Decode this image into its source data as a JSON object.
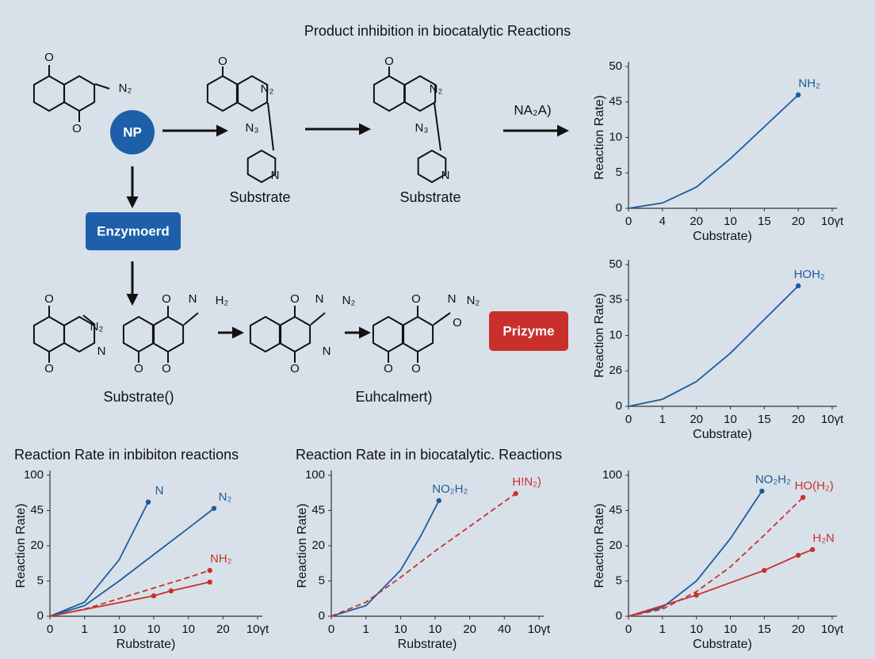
{
  "title": "Product inhibition in biocatalytic Reactions",
  "scheme": {
    "nodes": [
      "NP",
      "Enzymoerd",
      "Prizyme"
    ],
    "labels": [
      "Substrate",
      "Substrate",
      "Substrate()",
      "Euhcalmert)",
      "NA₂A)"
    ],
    "molecules": [
      {
        "atoms": [
          "O",
          "N₂",
          "O"
        ]
      },
      {
        "atoms": [
          "O",
          "N₂",
          "N₃",
          "N"
        ]
      },
      {
        "atoms": [
          "O",
          "N₂",
          "N₃",
          "N"
        ]
      },
      {
        "atoms": [
          "O",
          "N₂",
          "N",
          "O"
        ]
      },
      {
        "atoms": [
          "O",
          "N",
          "H₂",
          "O",
          "O"
        ]
      },
      {
        "atoms": [
          "O",
          "N",
          "N₂",
          "N",
          "O"
        ]
      },
      {
        "atoms": [
          "O",
          "N",
          "N₂",
          "O",
          "O",
          "O"
        ]
      }
    ]
  },
  "chart_data": [
    {
      "type": "line",
      "xlabel": "Cubstrate)",
      "ylabel": "Reaction Rate)",
      "xlim": [
        0,
        6
      ],
      "xticks": [
        0,
        {
          "value": 1,
          "label": "4"
        },
        {
          "value": 2,
          "label": "20"
        },
        {
          "value": 3,
          "label": "10"
        },
        {
          "value": 4,
          "label": "15"
        },
        {
          "value": 5,
          "label": "20"
        },
        {
          "value": 6,
          "label": "10γt"
        }
      ],
      "ylim": [
        0,
        4
      ],
      "yticks": [
        0,
        {
          "value": 1,
          "label": "5"
        },
        {
          "value": 2,
          "label": "10"
        },
        {
          "value": 3,
          "label": "45"
        },
        {
          "value": 4,
          "label": "50"
        }
      ],
      "series": [
        {
          "name": "NH₂",
          "color": "#1f5b9c",
          "dashed": false,
          "markers": "end",
          "x": [
            0,
            1,
            2,
            3,
            4,
            5
          ],
          "values": [
            0,
            0.15,
            0.6,
            1.4,
            2.3,
            3.2
          ]
        }
      ]
    },
    {
      "type": "line",
      "xlabel": "Cubstrate)",
      "ylabel": "Reaction Rate)",
      "xlim": [
        0,
        6
      ],
      "xticks": [
        0,
        {
          "value": 1,
          "label": "1"
        },
        {
          "value": 2,
          "label": "20"
        },
        {
          "value": 3,
          "label": "10"
        },
        {
          "value": 4,
          "label": "15"
        },
        {
          "value": 5,
          "label": "20"
        },
        {
          "value": 6,
          "label": "10γt"
        }
      ],
      "ylim": [
        0,
        4
      ],
      "yticks": [
        0,
        {
          "value": 1,
          "label": "26"
        },
        {
          "value": 2,
          "label": "10"
        },
        {
          "value": 3,
          "label": "35"
        },
        {
          "value": 4,
          "label": "50"
        }
      ],
      "series": [
        {
          "name": "HOH₂",
          "color": "#1f5b9c",
          "dashed": false,
          "markers": "end",
          "x": [
            0,
            1,
            2,
            3,
            4,
            5
          ],
          "values": [
            0,
            0.2,
            0.7,
            1.5,
            2.45,
            3.4
          ]
        }
      ]
    },
    {
      "type": "line",
      "title": "Reaction Rate in inbibiton reactions",
      "xlabel": "Rubstrate)",
      "ylabel": "Reaction Rate)",
      "xlim": [
        0,
        6
      ],
      "xticks": [
        0,
        {
          "value": 1,
          "label": "1"
        },
        {
          "value": 2,
          "label": "10"
        },
        {
          "value": 3,
          "label": "10"
        },
        {
          "value": 4,
          "label": "10"
        },
        {
          "value": 5,
          "label": "20"
        },
        {
          "value": 6,
          "label": "10γt"
        }
      ],
      "ylim": [
        0,
        4
      ],
      "yticks": [
        0,
        {
          "value": 1,
          "label": "5"
        },
        {
          "value": 2,
          "label": "20"
        },
        {
          "value": 3,
          "label": "45"
        },
        {
          "value": 4,
          "label": "100"
        }
      ],
      "series": [
        {
          "name": "N",
          "color": "#1f5b9c",
          "dashed": false,
          "markers": "end",
          "x": [
            0,
            1,
            2,
            2.84
          ],
          "values": [
            0,
            0.4,
            1.6,
            3.24
          ]
        },
        {
          "name": "N₂",
          "color": "#1f5b9c",
          "dashed": false,
          "markers": "end",
          "x": [
            0,
            1,
            2,
            3,
            4,
            4.74
          ],
          "values": [
            0,
            0.3,
            1.0,
            1.75,
            2.5,
            3.06
          ]
        },
        {
          "name": "NH₂",
          "color": "#c8312c",
          "dashed": true,
          "markers": "end",
          "x": [
            0,
            1,
            2,
            3,
            4,
            4.62
          ],
          "values": [
            0,
            0.2,
            0.5,
            0.8,
            1.1,
            1.3
          ]
        },
        {
          "color": "#c8312c",
          "dashed": false,
          "markers": "all",
          "x": [
            0,
            3,
            3.5,
            4.62
          ],
          "values": [
            0,
            0.58,
            0.72,
            0.97
          ]
        }
      ]
    },
    {
      "type": "line",
      "title": "Reaction Rate in in biocatalytic. Reactions",
      "xlabel": "Rubstrate)",
      "ylabel": "Reaction Rate)",
      "xlim": [
        0,
        6
      ],
      "xticks": [
        0,
        {
          "value": 1,
          "label": "1"
        },
        {
          "value": 2,
          "label": "10"
        },
        {
          "value": 3,
          "label": "10"
        },
        {
          "value": 4,
          "label": "20"
        },
        {
          "value": 5,
          "label": "40"
        },
        {
          "value": 6,
          "label": "10γt"
        }
      ],
      "ylim": [
        0,
        4
      ],
      "yticks": [
        0,
        {
          "value": 1,
          "label": "5"
        },
        {
          "value": 2,
          "label": "20"
        },
        {
          "value": 3,
          "label": "45"
        },
        {
          "value": 4,
          "label": "100"
        }
      ],
      "series": [
        {
          "name": "NO₂H₂",
          "color": "#1f5b9c",
          "dashed": false,
          "markers": "end",
          "x": [
            0,
            1,
            2,
            2.6,
            3.11
          ],
          "values": [
            0,
            0.3,
            1.3,
            2.3,
            3.28
          ]
        },
        {
          "name": "H!N₂)",
          "color": "#c8312c",
          "dashed": true,
          "markers": "end",
          "x": [
            0,
            1,
            2,
            3,
            4,
            5.33
          ],
          "values": [
            0,
            0.4,
            1.1,
            1.85,
            2.55,
            3.48
          ]
        }
      ]
    },
    {
      "type": "line",
      "xlabel": "Cubstrate)",
      "ylabel": "Reaction Rate)",
      "xlim": [
        0,
        6
      ],
      "xticks": [
        0,
        {
          "value": 1,
          "label": "1"
        },
        {
          "value": 2,
          "label": "10"
        },
        {
          "value": 3,
          "label": "10"
        },
        {
          "value": 4,
          "label": "15"
        },
        {
          "value": 5,
          "label": "20"
        },
        {
          "value": 6,
          "label": "10γt"
        }
      ],
      "ylim": [
        0,
        4
      ],
      "yticks": [
        0,
        {
          "value": 1,
          "label": "5"
        },
        {
          "value": 2,
          "label": "20"
        },
        {
          "value": 3,
          "label": "45"
        },
        {
          "value": 4,
          "label": "100"
        }
      ],
      "series": [
        {
          "name": "NO₂H₂",
          "color": "#1f5b9c",
          "dashed": false,
          "markers": "end",
          "x": [
            0,
            1,
            2,
            3,
            3.93
          ],
          "values": [
            0,
            0.25,
            1.0,
            2.2,
            3.55
          ]
        },
        {
          "name": "HO(H₂)",
          "color": "#c8312c",
          "dashed": true,
          "markers": "end",
          "x": [
            0,
            1,
            2,
            3,
            4,
            5.14
          ],
          "values": [
            0,
            0.2,
            0.7,
            1.4,
            2.3,
            3.37
          ]
        },
        {
          "name": "H₂N",
          "color": "#c8312c",
          "dashed": false,
          "markers": "all",
          "x": [
            0,
            2,
            4.0,
            5.0,
            5.42
          ],
          "values": [
            0,
            0.6,
            1.3,
            1.73,
            1.89
          ]
        }
      ]
    }
  ]
}
